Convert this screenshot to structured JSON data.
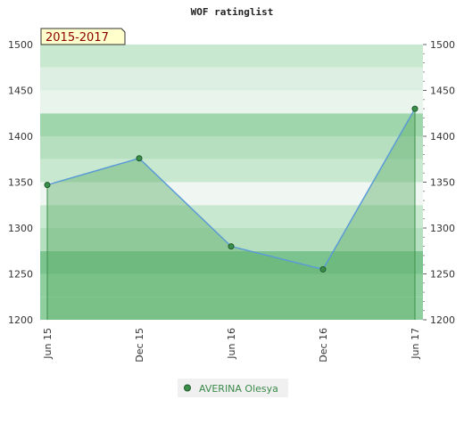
{
  "chart_data": {
    "type": "area",
    "title": "WOF ratinglist",
    "period_label": "2015-2017",
    "xlabel": "",
    "ylabel": "",
    "categories": [
      "Jun 15",
      "Dec 15",
      "Jun 16",
      "Dec 16",
      "Jun 17"
    ],
    "series": [
      {
        "name": "AVERINA Olesya",
        "values": [
          1347,
          1376,
          1280,
          1255,
          1430
        ]
      }
    ],
    "ylim": [
      1200,
      1500
    ],
    "yticks": [
      1200,
      1250,
      1300,
      1350,
      1400,
      1450,
      1500
    ],
    "grid": true,
    "legend_position": "bottom",
    "colors": {
      "line": "#5b9bd5",
      "area": "#5fb06a",
      "marker": "#3c8f4a",
      "badge_bg": "#ffffcc",
      "legend_bg": "#f0f0f0"
    }
  }
}
